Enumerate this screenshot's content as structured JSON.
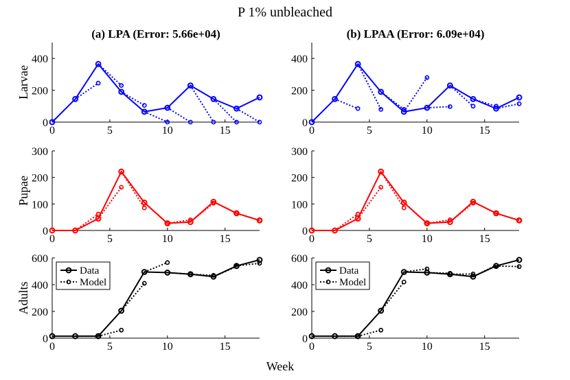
{
  "figure": {
    "title": "P 1% unbleached",
    "xlabel": "Week"
  },
  "legend": {
    "data_label": "Data",
    "model_label": "Model"
  },
  "colors": {
    "larvae": "#0000ff",
    "pupae": "#ff0000",
    "adults": "#000000",
    "axis": "#000000"
  },
  "chart_data": [
    {
      "panel": "a",
      "title": "(a) LPA (Error: 5.66e+04)",
      "type": "line",
      "xlim": [
        0,
        18
      ],
      "xticks": [
        0,
        5,
        10,
        15
      ],
      "subplots": [
        {
          "name": "larvae",
          "ylabel": "Larvae",
          "ylim": [
            0,
            500
          ],
          "yticks": [
            0,
            200,
            400
          ],
          "color": "#0000ff",
          "data": {
            "x": [
              0,
              2,
              4,
              6,
              8,
              10,
              12,
              14,
              16,
              18
            ],
            "y": [
              0,
              145,
              365,
              190,
              65,
              90,
              230,
              145,
              85,
              155
            ]
          },
          "model_segments": [
            {
              "x": [
                2,
                4
              ],
              "y": [
                145,
                245
              ]
            },
            {
              "x": [
                4,
                6
              ],
              "y": [
                365,
                230
              ]
            },
            {
              "x": [
                6,
                8
              ],
              "y": [
                190,
                105
              ]
            },
            {
              "x": [
                8,
                10
              ],
              "y": [
                65,
                0
              ]
            },
            {
              "x": [
                10,
                12
              ],
              "y": [
                90,
                0
              ]
            },
            {
              "x": [
                12,
                14
              ],
              "y": [
                230,
                0
              ]
            },
            {
              "x": [
                14,
                16
              ],
              "y": [
                145,
                0
              ]
            },
            {
              "x": [
                16,
                18
              ],
              "y": [
                85,
                0
              ]
            }
          ]
        },
        {
          "name": "pupae",
          "ylabel": "Pupae",
          "ylim": [
            0,
            300
          ],
          "yticks": [
            0,
            100,
            200,
            300
          ],
          "color": "#ff0000",
          "data": {
            "x": [
              0,
              2,
              4,
              6,
              8,
              10,
              12,
              14,
              16,
              18
            ],
            "y": [
              0,
              0,
              45,
              222,
              105,
              27,
              32,
              108,
              65,
              38
            ]
          },
          "model_segments": [
            {
              "x": [
                2,
                4
              ],
              "y": [
                0,
                62
              ]
            },
            {
              "x": [
                4,
                6
              ],
              "y": [
                45,
                163
              ]
            },
            {
              "x": [
                6,
                8
              ],
              "y": [
                222,
                85
              ]
            },
            {
              "x": [
                8,
                10
              ],
              "y": [
                105,
                27
              ]
            },
            {
              "x": [
                10,
                12
              ],
              "y": [
                27,
                40
              ]
            },
            {
              "x": [
                12,
                14
              ],
              "y": [
                32,
                103
              ]
            },
            {
              "x": [
                14,
                16
              ],
              "y": [
                108,
                65
              ]
            },
            {
              "x": [
                16,
                18
              ],
              "y": [
                65,
                38
              ]
            }
          ]
        },
        {
          "name": "adults",
          "ylabel": "Adults",
          "ylim": [
            0,
            600
          ],
          "yticks": [
            0,
            200,
            400,
            600
          ],
          "color": "#000000",
          "legend": true,
          "data": {
            "x": [
              0,
              2,
              4,
              6,
              8,
              10,
              12,
              14,
              16,
              18
            ],
            "y": [
              15,
              15,
              15,
              205,
              495,
              490,
              478,
              460,
              540,
              585
            ]
          },
          "model_segments": [
            {
              "x": [
                2,
                4
              ],
              "y": [
                15,
                15
              ]
            },
            {
              "x": [
                4,
                6
              ],
              "y": [
                15,
                60
              ]
            },
            {
              "x": [
                6,
                8
              ],
              "y": [
                205,
                410
              ]
            },
            {
              "x": [
                8,
                10
              ],
              "y": [
                495,
                565
              ]
            },
            {
              "x": [
                10,
                12
              ],
              "y": [
                490,
                478
              ]
            },
            {
              "x": [
                12,
                14
              ],
              "y": [
                478,
                470
              ]
            },
            {
              "x": [
                14,
                16
              ],
              "y": [
                460,
                535
              ]
            },
            {
              "x": [
                16,
                18
              ],
              "y": [
                540,
                560
              ]
            }
          ]
        }
      ]
    },
    {
      "panel": "b",
      "title": "(b) LPAA (Error: 6.09e+04)",
      "type": "line",
      "xlim": [
        0,
        18
      ],
      "xticks": [
        0,
        5,
        10,
        15
      ],
      "subplots": [
        {
          "name": "larvae",
          "ylabel": "",
          "ylim": [
            0,
            500
          ],
          "yticks": [
            0,
            200,
            400
          ],
          "color": "#0000ff",
          "data": {
            "x": [
              0,
              2,
              4,
              6,
              8,
              10,
              12,
              14,
              16,
              18
            ],
            "y": [
              0,
              145,
              365,
              190,
              65,
              90,
              230,
              145,
              85,
              155
            ]
          },
          "model_segments": [
            {
              "x": [
                2,
                4
              ],
              "y": [
                145,
                85
              ]
            },
            {
              "x": [
                4,
                6
              ],
              "y": [
                365,
                80
              ]
            },
            {
              "x": [
                6,
                8
              ],
              "y": [
                190,
                80
              ]
            },
            {
              "x": [
                8,
                10
              ],
              "y": [
                65,
                280
              ]
            },
            {
              "x": [
                10,
                12
              ],
              "y": [
                90,
                97
              ]
            },
            {
              "x": [
                12,
                14
              ],
              "y": [
                230,
                100
              ]
            },
            {
              "x": [
                14,
                16
              ],
              "y": [
                145,
                100
              ]
            },
            {
              "x": [
                16,
                18
              ],
              "y": [
                85,
                115
              ]
            }
          ]
        },
        {
          "name": "pupae",
          "ylabel": "",
          "ylim": [
            0,
            300
          ],
          "yticks": [
            0,
            100,
            200,
            300
          ],
          "color": "#ff0000",
          "data": {
            "x": [
              0,
              2,
              4,
              6,
              8,
              10,
              12,
              14,
              16,
              18
            ],
            "y": [
              0,
              0,
              45,
              222,
              105,
              27,
              32,
              108,
              65,
              38
            ]
          },
          "model_segments": [
            {
              "x": [
                2,
                4
              ],
              "y": [
                0,
                62
              ]
            },
            {
              "x": [
                4,
                6
              ],
              "y": [
                45,
                163
              ]
            },
            {
              "x": [
                6,
                8
              ],
              "y": [
                222,
                85
              ]
            },
            {
              "x": [
                8,
                10
              ],
              "y": [
                105,
                27
              ]
            },
            {
              "x": [
                10,
                12
              ],
              "y": [
                27,
                40
              ]
            },
            {
              "x": [
                12,
                14
              ],
              "y": [
                32,
                103
              ]
            },
            {
              "x": [
                14,
                16
              ],
              "y": [
                108,
                65
              ]
            },
            {
              "x": [
                16,
                18
              ],
              "y": [
                65,
                38
              ]
            }
          ]
        },
        {
          "name": "adults",
          "ylabel": "",
          "ylim": [
            0,
            600
          ],
          "yticks": [
            0,
            200,
            400,
            600
          ],
          "color": "#000000",
          "legend": true,
          "data": {
            "x": [
              0,
              2,
              4,
              6,
              8,
              10,
              12,
              14,
              16,
              18
            ],
            "y": [
              15,
              15,
              15,
              205,
              495,
              490,
              478,
              460,
              540,
              585
            ]
          },
          "model_segments": [
            {
              "x": [
                2,
                4
              ],
              "y": [
                15,
                15
              ]
            },
            {
              "x": [
                4,
                6
              ],
              "y": [
                15,
                60
              ]
            },
            {
              "x": [
                6,
                8
              ],
              "y": [
                205,
                420
              ]
            },
            {
              "x": [
                8,
                10
              ],
              "y": [
                495,
                518
              ]
            },
            {
              "x": [
                10,
                12
              ],
              "y": [
                490,
                485
              ]
            },
            {
              "x": [
                12,
                14
              ],
              "y": [
                478,
                480
              ]
            },
            {
              "x": [
                14,
                16
              ],
              "y": [
                460,
                545
              ]
            },
            {
              "x": [
                16,
                18
              ],
              "y": [
                540,
                535
              ]
            }
          ]
        }
      ]
    }
  ]
}
